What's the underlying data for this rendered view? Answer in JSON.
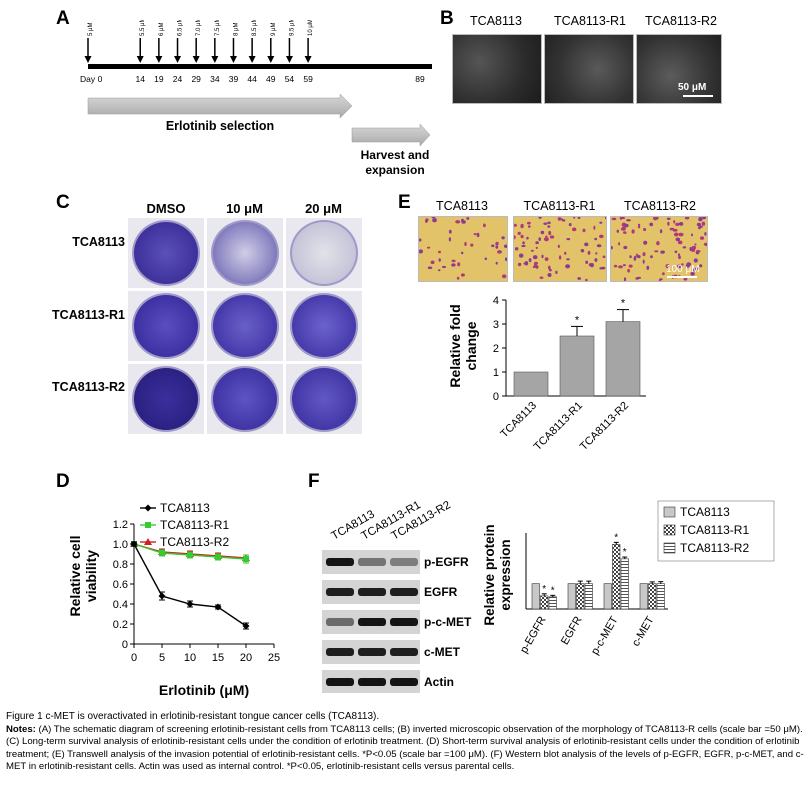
{
  "panel_a": {
    "label": "A",
    "doses": [
      "5 μM",
      "5.5 μM",
      "6 μM",
      "6.5 μM",
      "7.0 μM",
      "7.5 μM",
      "8 μM",
      "8.5 μM",
      "9 μM",
      "9.5 μM",
      "10 μM"
    ],
    "day_prefix": "Day",
    "days": [
      "0",
      "14",
      "19",
      "24",
      "29",
      "34",
      "39",
      "44",
      "49",
      "54",
      "59",
      "89"
    ],
    "selection_label": "Erlotinib selection",
    "harvest_label_1": "Harvest and",
    "harvest_label_2": "expansion"
  },
  "panel_b": {
    "label": "B",
    "cells": [
      "TCA8113",
      "TCA8113-R1",
      "TCA8113-R2"
    ],
    "scale": "50 μM"
  },
  "panel_c": {
    "label": "C",
    "columns": [
      "DMSO",
      "10 μM",
      "20 μM"
    ],
    "rows": [
      "TCA8113",
      "TCA8113-R1",
      "TCA8113-R2"
    ]
  },
  "panel_d": {
    "label": "D",
    "ylabel_1": "Relative cell",
    "ylabel_2": "viability",
    "xlabel": "Erlotinib (μM)",
    "colors": {
      "TCA8113": "#000000",
      "TCA8113-R1": "#33cc33",
      "TCA8113-R2": "#cc2222"
    }
  },
  "panel_e": {
    "label": "E",
    "images": [
      "TCA8113",
      "TCA8113-R1",
      "TCA8113-R2"
    ],
    "scale": "100 μM",
    "ylabel_1": "Relative fold",
    "ylabel_2": "change",
    "star": "*"
  },
  "panel_f": {
    "label": "F",
    "lanes": [
      "TCA8113",
      "TCA8113-R1",
      "TCA8113-R2"
    ],
    "bands": [
      "p-EGFR",
      "EGFR",
      "p-c-MET",
      "c-MET",
      "Actin"
    ],
    "ylabel_1": "Relative protein",
    "ylabel_2": "expression",
    "star": "*"
  },
  "caption": {
    "title": "Figure 1 c-MET is overactivated in erlotinib-resistant tongue cancer cells (TCA8113).",
    "notes_label": "Notes:",
    "notes_text": " (A) The schematic diagram of screening erlotinib-resistant cells from TCA8113 cells; (B) inverted microscopic observation of the morphology of TCA8113-R cells (scale bar =50 μM). (C) Long-term survival analysis of erlotinib-resistant cells under the condition of erlotinib treatment. (D) Short-term survival analysis of erlotinib-resistant cells under the condition of erlotinib treatment; (E) Transwell analysis of the invasion potential of erlotinib-resistant cells. *P<0.05 (scale bar =100 μM). (F) Western blot analysis of the levels of p-EGFR, EGFR, p-c-MET, and c-MET in erlotinib-resistant cells. Actin was used as internal control. *P<0.05, erlotinib-resistant cells versus parental cells."
  },
  "chart_data": [
    {
      "type": "line",
      "panel": "D",
      "x": [
        0,
        5,
        10,
        15,
        20
      ],
      "series": [
        {
          "name": "TCA8113",
          "values": [
            1.0,
            0.48,
            0.4,
            0.37,
            0.18
          ],
          "errors": [
            0.02,
            0.04,
            0.03,
            0.02,
            0.03
          ]
        },
        {
          "name": "TCA8113-R1",
          "values": [
            1.0,
            0.91,
            0.89,
            0.87,
            0.85
          ],
          "errors": [
            0.02,
            0.03,
            0.03,
            0.03,
            0.04
          ]
        },
        {
          "name": "TCA8113-R2",
          "values": [
            1.0,
            0.92,
            0.9,
            0.88,
            0.86
          ],
          "errors": [
            0.02,
            0.03,
            0.03,
            0.03,
            0.03
          ]
        }
      ],
      "xlabel": "Erlotinib (μM)",
      "ylabel": "Relative cell viability",
      "xlim": [
        0,
        25
      ],
      "ylim": [
        0,
        1.2
      ],
      "xticks": [
        "0",
        "5",
        "10",
        "15",
        "20",
        "25"
      ],
      "yticks": [
        "0",
        "0.2",
        "0.4",
        "0.6",
        "0.8",
        "1.0",
        "1.2"
      ],
      "legend": "top-right"
    },
    {
      "type": "bar",
      "panel": "E",
      "categories": [
        "TCA8113",
        "TCA8113-R1",
        "TCA8113-R2"
      ],
      "values": [
        1.0,
        2.5,
        3.1
      ],
      "errors": [
        0,
        0.4,
        0.5
      ],
      "significant": [
        false,
        true,
        true
      ],
      "ylabel": "Relative fold change",
      "ylim": [
        0,
        4
      ],
      "yticks": [
        "0",
        "1",
        "2",
        "3",
        "4"
      ]
    },
    {
      "type": "bar",
      "panel": "F",
      "categories": [
        "p-EGFR",
        "EGFR",
        "p-c-MET",
        "c-MET"
      ],
      "series": [
        {
          "name": "TCA8113",
          "values": [
            1.0,
            1.0,
            1.0,
            1.0
          ],
          "errors": [
            0,
            0,
            0,
            0
          ]
        },
        {
          "name": "TCA8113-R1",
          "values": [
            0.52,
            1.0,
            2.55,
            1.0
          ],
          "errors": [
            0.08,
            0.1,
            0.08,
            0.07
          ]
        },
        {
          "name": "TCA8113-R2",
          "values": [
            0.48,
            1.0,
            1.98,
            1.0
          ],
          "errors": [
            0.06,
            0.1,
            0.07,
            0.08
          ]
        }
      ],
      "significant": [
        [
          false,
          true,
          true
        ],
        [
          false,
          false,
          false
        ],
        [
          false,
          true,
          true
        ],
        [
          false,
          false,
          false
        ]
      ],
      "ylabel": "Relative protein expression",
      "ylim": [
        0,
        3.0
      ],
      "legend": "top-right"
    }
  ]
}
